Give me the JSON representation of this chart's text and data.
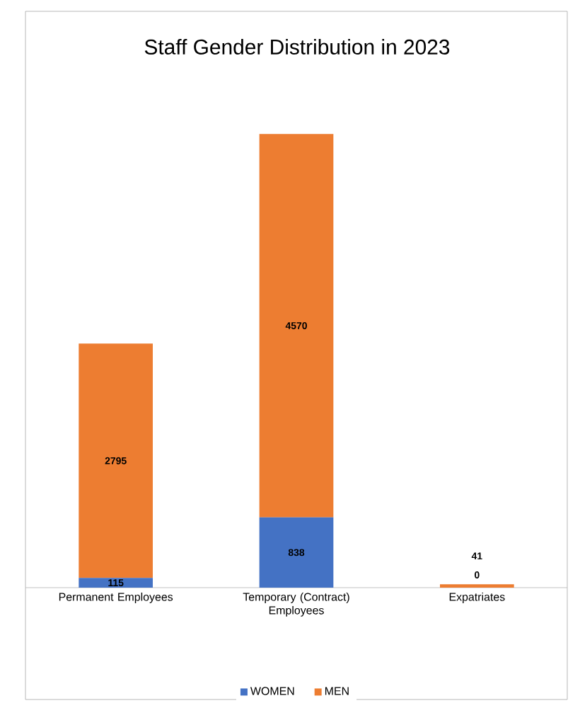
{
  "chart_data": {
    "type": "bar",
    "title": "Staff Gender Distribution in 2023",
    "stacked": true,
    "data_labels": true,
    "legend": "bottom",
    "categories": [
      "Permanent Employees",
      "Temporary (Contract) Employees",
      "Expatriates"
    ],
    "series": [
      {
        "name": "WOMEN",
        "color": "#4472c4",
        "values": [
          115,
          838,
          0
        ]
      },
      {
        "name": "MEN",
        "color": "#ed7d31",
        "values": [
          2795,
          4570,
          41
        ]
      }
    ]
  }
}
